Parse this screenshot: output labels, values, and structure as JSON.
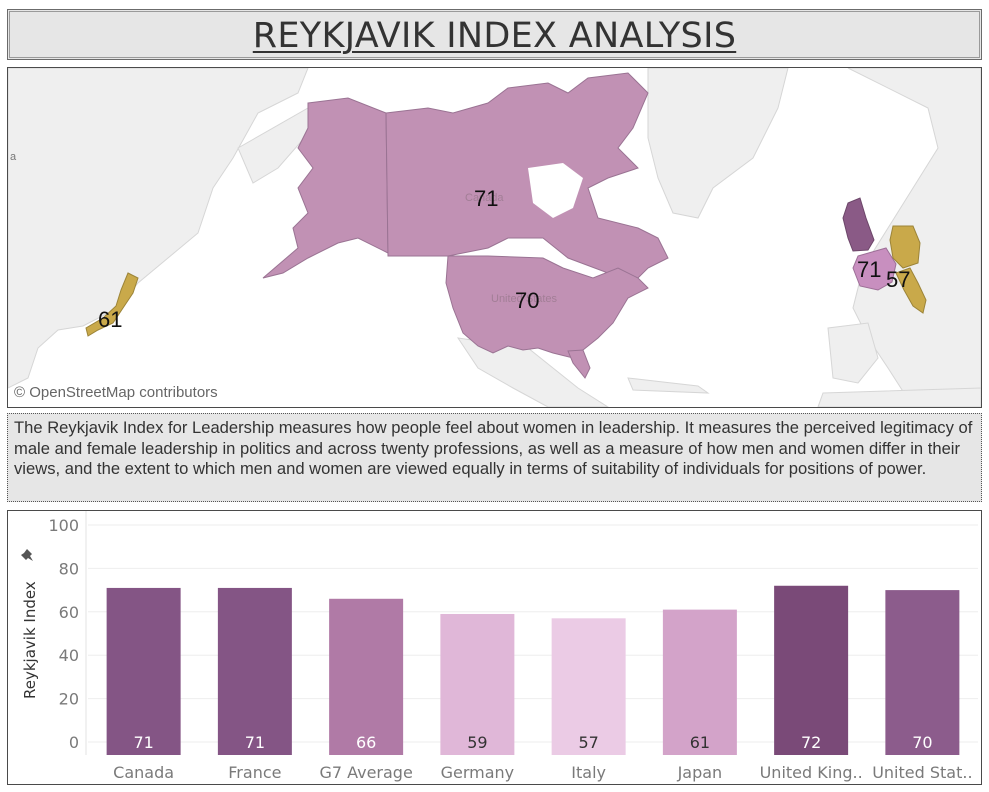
{
  "title": "REYKJAVIK INDEX ANALYSIS",
  "map": {
    "credit": "© OpenStreetMap contributors",
    "faint_labels": [
      "Canada",
      "United States",
      "a"
    ],
    "labels": [
      {
        "country": "Canada",
        "value": "71"
      },
      {
        "country": "United States",
        "value": "70"
      },
      {
        "country": "Japan",
        "value": "61"
      },
      {
        "country": "France",
        "value": "71"
      },
      {
        "country": "Italy",
        "value": "57"
      }
    ],
    "colors": {
      "ocean": "#ffffff",
      "land": "#f0f0f0",
      "north_america": "#c191b4",
      "gold": "#c9a94a",
      "uk": "#8a5a86",
      "france": "#c88fbf"
    }
  },
  "description": "The Reykjavik Index for Leadership measures how people feel about women in leadership. It measures the perceived legitimacy of male and female leadership in politics and across twenty professions, as well as a measure of how men and women differ in their views, and the extent to which men and women are viewed equally in terms of suitability of individuals for positions of power.",
  "chart_data": {
    "type": "bar",
    "categories": [
      "Canada",
      "France",
      "G7 Average",
      "Germany",
      "Italy",
      "Japan",
      "United King..",
      "United Stat.."
    ],
    "values": [
      71,
      71,
      66,
      59,
      57,
      61,
      72,
      70
    ],
    "value_labels": [
      "71",
      "71",
      "66",
      "59",
      "57",
      "61",
      "72",
      "70"
    ],
    "ylabel": "Reykjavik Index",
    "ylim": [
      0,
      100
    ],
    "yticks": [
      0,
      20,
      40,
      60,
      80,
      100
    ],
    "ytick_labels": [
      "0",
      "20",
      "40",
      "60",
      "80",
      "100"
    ],
    "colors": [
      "#845585",
      "#845585",
      "#b07aa6",
      "#e0b7d8",
      "#ebcbe5",
      "#d3a3c9",
      "#7a4a78",
      "#8c5c8c"
    ],
    "label_colors": [
      "#ffffff",
      "#ffffff",
      "#ffffff",
      "#333333",
      "#333333",
      "#333333",
      "#ffffff",
      "#ffffff"
    ],
    "grid": true,
    "pin_icon": "pin-icon"
  }
}
